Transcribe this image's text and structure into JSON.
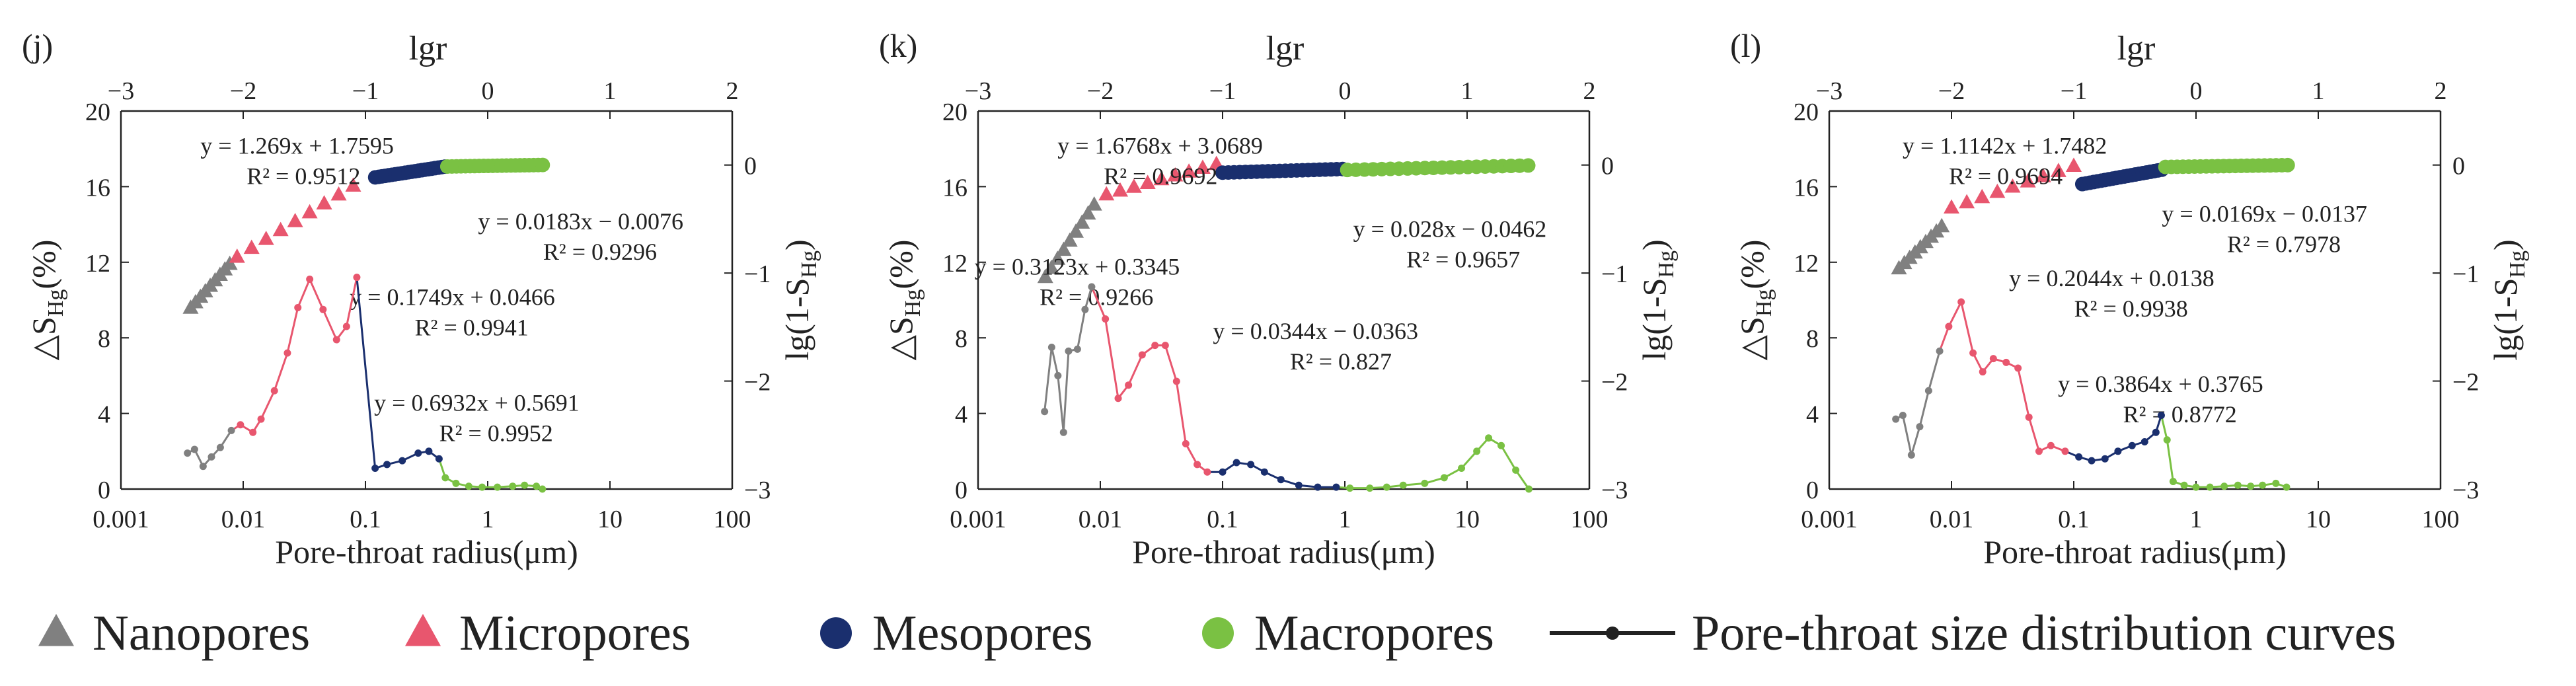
{
  "colors": {
    "nano": "#808080",
    "micro": "#e8566e",
    "meso": "#1a2f6e",
    "macro": "#7ac143",
    "axis": "#222222"
  },
  "legend": {
    "items": [
      {
        "label": "Nanopores",
        "marker": "triangle",
        "color_key": "nano"
      },
      {
        "label": "Micropores",
        "marker": "triangle",
        "color_key": "micro"
      },
      {
        "label": "Mesopores",
        "marker": "circle",
        "color_key": "meso"
      },
      {
        "label": "Macropores",
        "marker": "circle",
        "color_key": "macro"
      },
      {
        "label": "Pore-throat size distribution curves",
        "marker": "line-dot",
        "color_key": "axis"
      }
    ]
  },
  "chart_data": [
    {
      "type": "scatter+line",
      "panel_label": "(j)",
      "title": "",
      "top_axis": {
        "label": "lgr",
        "range": [
          -3,
          2
        ],
        "ticks": [
          "−3",
          "−2",
          "−1",
          "0",
          "1",
          "2"
        ]
      },
      "bottom_axis": {
        "label": "Pore-throat radius(μm)",
        "scale": "log",
        "range": [
          0.001,
          100
        ],
        "ticks": [
          "0.001",
          "0.01",
          "0.1",
          "1",
          "10",
          "100"
        ]
      },
      "left_axis": {
        "label": "△S",
        "sub": "Hg",
        "suffix": "(%)",
        "range": [
          0,
          20
        ],
        "ticks": [
          "0",
          "4",
          "8",
          "12",
          "16",
          "20"
        ]
      },
      "right_axis": {
        "label": "lg(1-S",
        "sub": "Hg",
        "suffix": ")",
        "range": [
          -3,
          0.5
        ],
        "ticks": [
          "0",
          "−1",
          "−2",
          "−3"
        ]
      },
      "fits": {
        "nano": {
          "line1": "y = 1.269x + 1.7595",
          "line2": "R² = 0.9512",
          "x": [
            -2.43,
            -2.11
          ],
          "slope": 1.269,
          "intercept": 1.7595
        },
        "micro": {
          "line1": "y = 0.6932x + 0.5691",
          "line2": "R² = 0.9952",
          "x": [
            -2.05,
            -1.1
          ],
          "slope": 0.6932,
          "intercept": 0.5691
        },
        "meso": {
          "line1": "y = 0.1749x + 0.0466",
          "line2": "R² = 0.9941",
          "x": [
            -0.92,
            -0.35
          ],
          "slope": 0.1749,
          "intercept": 0.0466
        },
        "macro": {
          "line1": "y = 0.0183x − 0.0076",
          "line2": "R² = 0.9296",
          "x": [
            -0.33,
            0.45
          ],
          "slope": 0.0183,
          "intercept": -0.0076
        }
      },
      "dist_curve": [
        {
          "x": 0.0035,
          "y": 1.9,
          "p": "nano"
        },
        {
          "x": 0.004,
          "y": 2.1,
          "p": "nano"
        },
        {
          "x": 0.0047,
          "y": 1.2,
          "p": "nano"
        },
        {
          "x": 0.0055,
          "y": 1.7,
          "p": "nano"
        },
        {
          "x": 0.0065,
          "y": 2.2,
          "p": "nano"
        },
        {
          "x": 0.008,
          "y": 3.1,
          "p": "nano"
        },
        {
          "x": 0.0095,
          "y": 3.4,
          "p": "micro"
        },
        {
          "x": 0.012,
          "y": 3.0,
          "p": "micro"
        },
        {
          "x": 0.014,
          "y": 3.7,
          "p": "micro"
        },
        {
          "x": 0.018,
          "y": 5.2,
          "p": "micro"
        },
        {
          "x": 0.023,
          "y": 7.2,
          "p": "micro"
        },
        {
          "x": 0.028,
          "y": 9.6,
          "p": "micro"
        },
        {
          "x": 0.035,
          "y": 11.1,
          "p": "micro"
        },
        {
          "x": 0.045,
          "y": 9.5,
          "p": "micro"
        },
        {
          "x": 0.058,
          "y": 7.9,
          "p": "micro"
        },
        {
          "x": 0.07,
          "y": 8.6,
          "p": "micro"
        },
        {
          "x": 0.085,
          "y": 11.2,
          "p": "micro"
        },
        {
          "x": 0.12,
          "y": 1.1,
          "p": "meso"
        },
        {
          "x": 0.15,
          "y": 1.3,
          "p": "meso"
        },
        {
          "x": 0.2,
          "y": 1.5,
          "p": "meso"
        },
        {
          "x": 0.27,
          "y": 1.9,
          "p": "meso"
        },
        {
          "x": 0.33,
          "y": 2.0,
          "p": "meso"
        },
        {
          "x": 0.4,
          "y": 1.6,
          "p": "meso"
        },
        {
          "x": 0.45,
          "y": 0.6,
          "p": "macro"
        },
        {
          "x": 0.55,
          "y": 0.3,
          "p": "macro"
        },
        {
          "x": 0.7,
          "y": 0.15,
          "p": "macro"
        },
        {
          "x": 0.9,
          "y": 0.1,
          "p": "macro"
        },
        {
          "x": 1.2,
          "y": 0.1,
          "p": "macro"
        },
        {
          "x": 1.6,
          "y": 0.15,
          "p": "macro"
        },
        {
          "x": 2.0,
          "y": 0.2,
          "p": "macro"
        },
        {
          "x": 2.5,
          "y": 0.15,
          "p": "macro"
        },
        {
          "x": 2.8,
          "y": 0.0,
          "p": "macro"
        }
      ],
      "label_positions": {
        "nano": "top-left",
        "micro": "lower-right",
        "meso": "center-right",
        "macro": "upper-right"
      }
    },
    {
      "type": "scatter+line",
      "panel_label": "(k)",
      "title": "",
      "top_axis": {
        "label": "lgr",
        "range": [
          -3,
          2
        ],
        "ticks": [
          "−3",
          "−2",
          "−1",
          "0",
          "1",
          "2"
        ]
      },
      "bottom_axis": {
        "label": "Pore-throat radius(μm)",
        "scale": "log",
        "range": [
          0.001,
          100
        ],
        "ticks": [
          "0.001",
          "0.01",
          "0.1",
          "1",
          "10",
          "100"
        ]
      },
      "left_axis": {
        "label": "△S",
        "sub": "Hg",
        "suffix": "(%)",
        "range": [
          0,
          20
        ],
        "ticks": [
          "0",
          "4",
          "8",
          "12",
          "16",
          "20"
        ]
      },
      "right_axis": {
        "label": "lg(1-S",
        "sub": "Hg",
        "suffix": ")",
        "range": [
          -3,
          0.5
        ],
        "ticks": [
          "0",
          "−1",
          "−2",
          "−3"
        ]
      },
      "fits": {
        "nano": {
          "line1": "y = 1.6768x + 3.0689",
          "line2": "R² = 0.9692",
          "x": [
            -2.45,
            -2.05
          ],
          "slope": 1.6768,
          "intercept": 3.0689
        },
        "micro": {
          "line1": "y = 0.3123x + 0.3345",
          "line2": "R² = 0.9266",
          "x": [
            -1.95,
            -1.05
          ],
          "slope": 0.3123,
          "intercept": 0.3345
        },
        "meso": {
          "line1": "y = 0.0344x − 0.0363",
          "line2": "R² = 0.827",
          "x": [
            -1.0,
            -0.02
          ],
          "slope": 0.0344,
          "intercept": -0.0363
        },
        "macro": {
          "line1": "y = 0.028x − 0.0462",
          "line2": "R² = 0.9657",
          "x": [
            0.02,
            1.5
          ],
          "slope": 0.028,
          "intercept": -0.0462
        }
      },
      "dist_curve": [
        {
          "x": 0.0035,
          "y": 4.1,
          "p": "nano"
        },
        {
          "x": 0.004,
          "y": 7.5,
          "p": "nano"
        },
        {
          "x": 0.0045,
          "y": 6.0,
          "p": "nano"
        },
        {
          "x": 0.005,
          "y": 3.0,
          "p": "nano"
        },
        {
          "x": 0.0055,
          "y": 7.3,
          "p": "nano"
        },
        {
          "x": 0.0065,
          "y": 7.4,
          "p": "nano"
        },
        {
          "x": 0.0075,
          "y": 9.5,
          "p": "nano"
        },
        {
          "x": 0.0085,
          "y": 10.7,
          "p": "nano"
        },
        {
          "x": 0.011,
          "y": 9.0,
          "p": "micro"
        },
        {
          "x": 0.014,
          "y": 4.8,
          "p": "micro"
        },
        {
          "x": 0.017,
          "y": 5.5,
          "p": "micro"
        },
        {
          "x": 0.022,
          "y": 7.1,
          "p": "micro"
        },
        {
          "x": 0.028,
          "y": 7.6,
          "p": "micro"
        },
        {
          "x": 0.034,
          "y": 7.6,
          "p": "micro"
        },
        {
          "x": 0.042,
          "y": 5.7,
          "p": "micro"
        },
        {
          "x": 0.05,
          "y": 2.4,
          "p": "micro"
        },
        {
          "x": 0.062,
          "y": 1.3,
          "p": "micro"
        },
        {
          "x": 0.075,
          "y": 0.9,
          "p": "micro"
        },
        {
          "x": 0.1,
          "y": 0.9,
          "p": "meso"
        },
        {
          "x": 0.13,
          "y": 1.4,
          "p": "meso"
        },
        {
          "x": 0.17,
          "y": 1.3,
          "p": "meso"
        },
        {
          "x": 0.22,
          "y": 0.9,
          "p": "meso"
        },
        {
          "x": 0.3,
          "y": 0.5,
          "p": "meso"
        },
        {
          "x": 0.42,
          "y": 0.2,
          "p": "meso"
        },
        {
          "x": 0.6,
          "y": 0.1,
          "p": "meso"
        },
        {
          "x": 0.85,
          "y": 0.1,
          "p": "meso"
        },
        {
          "x": 1.1,
          "y": 0.05,
          "p": "macro"
        },
        {
          "x": 1.6,
          "y": 0.05,
          "p": "macro"
        },
        {
          "x": 2.2,
          "y": 0.1,
          "p": "macro"
        },
        {
          "x": 3.0,
          "y": 0.2,
          "p": "macro"
        },
        {
          "x": 4.5,
          "y": 0.3,
          "p": "macro"
        },
        {
          "x": 6.5,
          "y": 0.6,
          "p": "macro"
        },
        {
          "x": 9.0,
          "y": 1.1,
          "p": "macro"
        },
        {
          "x": 12.0,
          "y": 2.0,
          "p": "macro"
        },
        {
          "x": 15.0,
          "y": 2.7,
          "p": "macro"
        },
        {
          "x": 19.0,
          "y": 2.3,
          "p": "macro"
        },
        {
          "x": 25.0,
          "y": 1.0,
          "p": "macro"
        },
        {
          "x": 32.0,
          "y": 0.0,
          "p": "macro"
        }
      ],
      "label_positions": {
        "nano": "top-left",
        "micro": "center-left",
        "meso": "center-right",
        "macro": "upper-right"
      }
    },
    {
      "type": "scatter+line",
      "panel_label": "(l)",
      "title": "",
      "top_axis": {
        "label": "lgr",
        "range": [
          -3,
          2
        ],
        "ticks": [
          "−3",
          "−2",
          "−1",
          "0",
          "1",
          "2"
        ]
      },
      "bottom_axis": {
        "label": "Pore-throat radius(μm)",
        "scale": "log",
        "range": [
          0.001,
          100
        ],
        "ticks": [
          "0.001",
          "0.01",
          "0.1",
          "1",
          "10",
          "100"
        ]
      },
      "left_axis": {
        "label": "△S",
        "sub": "Hg",
        "suffix": "(%)",
        "range": [
          0,
          20
        ],
        "ticks": [
          "0",
          "4",
          "8",
          "12",
          "16",
          "20"
        ]
      },
      "right_axis": {
        "label": "lg(1-S",
        "sub": "Hg",
        "suffix": ")",
        "range": [
          -3,
          0.5
        ],
        "ticks": [
          "0",
          "−1",
          "−2",
          "−3"
        ]
      },
      "fits": {
        "nano": {
          "line1": "y = 1.1142x + 1.7482",
          "line2": "R² = 0.9694",
          "x": [
            -2.43,
            -2.08
          ],
          "slope": 1.1142,
          "intercept": 1.7482
        },
        "micro": {
          "line1": "y = 0.3864x + 0.3765",
          "line2": "R² = 0.8772",
          "x": [
            -2.0,
            -1.0
          ],
          "slope": 0.3864,
          "intercept": 0.3765
        },
        "meso": {
          "line1": "y = 0.2044x + 0.0138",
          "line2": "R² = 0.9938",
          "x": [
            -0.93,
            -0.28
          ],
          "slope": 0.2044,
          "intercept": 0.0138
        },
        "macro": {
          "line1": "y = 0.0169x − 0.0137",
          "line2": "R² = 0.7978",
          "x": [
            -0.25,
            0.75
          ],
          "slope": 0.0169,
          "intercept": -0.0137
        }
      },
      "dist_curve": [
        {
          "x": 0.0035,
          "y": 3.7,
          "p": "nano"
        },
        {
          "x": 0.004,
          "y": 3.9,
          "p": "nano"
        },
        {
          "x": 0.0047,
          "y": 1.8,
          "p": "nano"
        },
        {
          "x": 0.0055,
          "y": 3.3,
          "p": "nano"
        },
        {
          "x": 0.0065,
          "y": 5.2,
          "p": "nano"
        },
        {
          "x": 0.008,
          "y": 7.3,
          "p": "nano"
        },
        {
          "x": 0.0095,
          "y": 8.6,
          "p": "micro"
        },
        {
          "x": 0.012,
          "y": 9.9,
          "p": "micro"
        },
        {
          "x": 0.015,
          "y": 7.2,
          "p": "micro"
        },
        {
          "x": 0.018,
          "y": 6.2,
          "p": "micro"
        },
        {
          "x": 0.022,
          "y": 6.9,
          "p": "micro"
        },
        {
          "x": 0.028,
          "y": 6.7,
          "p": "micro"
        },
        {
          "x": 0.035,
          "y": 6.4,
          "p": "micro"
        },
        {
          "x": 0.043,
          "y": 3.8,
          "p": "micro"
        },
        {
          "x": 0.052,
          "y": 2.0,
          "p": "micro"
        },
        {
          "x": 0.065,
          "y": 2.3,
          "p": "micro"
        },
        {
          "x": 0.085,
          "y": 2.0,
          "p": "micro"
        },
        {
          "x": 0.11,
          "y": 1.7,
          "p": "meso"
        },
        {
          "x": 0.14,
          "y": 1.5,
          "p": "meso"
        },
        {
          "x": 0.18,
          "y": 1.6,
          "p": "meso"
        },
        {
          "x": 0.23,
          "y": 2.0,
          "p": "meso"
        },
        {
          "x": 0.3,
          "y": 2.3,
          "p": "meso"
        },
        {
          "x": 0.38,
          "y": 2.5,
          "p": "meso"
        },
        {
          "x": 0.47,
          "y": 3.0,
          "p": "meso"
        },
        {
          "x": 0.52,
          "y": 3.9,
          "p": "meso"
        },
        {
          "x": 0.58,
          "y": 2.6,
          "p": "macro"
        },
        {
          "x": 0.65,
          "y": 0.4,
          "p": "macro"
        },
        {
          "x": 0.8,
          "y": 0.2,
          "p": "macro"
        },
        {
          "x": 1.0,
          "y": 0.1,
          "p": "macro"
        },
        {
          "x": 1.3,
          "y": 0.1,
          "p": "macro"
        },
        {
          "x": 1.7,
          "y": 0.15,
          "p": "macro"
        },
        {
          "x": 2.2,
          "y": 0.2,
          "p": "macro"
        },
        {
          "x": 2.8,
          "y": 0.15,
          "p": "macro"
        },
        {
          "x": 3.5,
          "y": 0.2,
          "p": "macro"
        },
        {
          "x": 4.5,
          "y": 0.3,
          "p": "macro"
        },
        {
          "x": 5.5,
          "y": 0.1,
          "p": "macro"
        }
      ],
      "label_positions": {
        "nano": "top-left",
        "micro": "lower-right",
        "meso": "center-right",
        "macro": "upper-right"
      }
    }
  ]
}
